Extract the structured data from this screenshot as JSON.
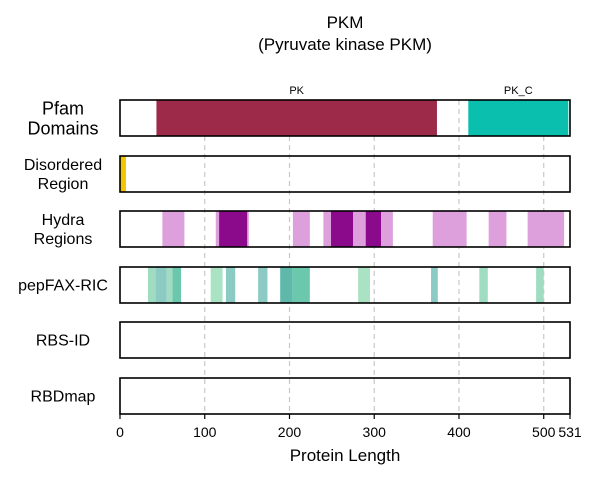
{
  "chart_data": {
    "type": "bar",
    "title": "PKM",
    "subtitle": "(Pyruvate kinase PKM)",
    "xlabel": "Protein Length",
    "xlim": [
      0,
      531
    ],
    "xticks": [
      0,
      100,
      200,
      300,
      400,
      500,
      531
    ],
    "grid": "vertical dashed at 100, 200, 300, 400, 500",
    "tracks": [
      {
        "label": "Pfam\nDomains",
        "features": [
          {
            "name": "PK",
            "start": 43,
            "end": 374,
            "color": "#9e2a4a"
          },
          {
            "name": "PK_C",
            "start": 411,
            "end": 529,
            "color": "#0bbfae"
          }
        ]
      },
      {
        "label": "Disordered\nRegion",
        "features": [
          {
            "start": 0,
            "end": 7,
            "color": "#f2c500"
          }
        ]
      },
      {
        "label": "Hydra\nRegions",
        "features": [
          {
            "start": 50,
            "end": 76,
            "color": "#dda0dd"
          },
          {
            "start": 113,
            "end": 152,
            "color": "#dda0dd"
          },
          {
            "start": 204,
            "end": 224,
            "color": "#dda0dd"
          },
          {
            "start": 240,
            "end": 258,
            "color": "#dda0dd"
          },
          {
            "start": 275,
            "end": 292,
            "color": "#dda0dd"
          },
          {
            "start": 305,
            "end": 322,
            "color": "#dda0dd"
          },
          {
            "start": 369,
            "end": 409,
            "color": "#dda0dd"
          },
          {
            "start": 435,
            "end": 456,
            "color": "#dda0dd"
          },
          {
            "start": 481,
            "end": 524,
            "color": "#dda0dd"
          },
          {
            "start": 117,
            "end": 150,
            "color": "#8b0a8b"
          },
          {
            "start": 249,
            "end": 275,
            "color": "#8b0a8b"
          },
          {
            "start": 290,
            "end": 308,
            "color": "#8b0a8b"
          }
        ]
      },
      {
        "label": "pepFAX-RIC",
        "features": [
          {
            "start": 33,
            "end": 42,
            "color": "#9fdcc2"
          },
          {
            "start": 42,
            "end": 55,
            "color": "#8ccbc4"
          },
          {
            "start": 55,
            "end": 62,
            "color": "#9fdcc2"
          },
          {
            "start": 62,
            "end": 72,
            "color": "#6bc8ad"
          },
          {
            "start": 107,
            "end": 121,
            "color": "#a9e3c4"
          },
          {
            "start": 125,
            "end": 136,
            "color": "#8ccbc4"
          },
          {
            "start": 163,
            "end": 174,
            "color": "#8ccbc4"
          },
          {
            "start": 189,
            "end": 203,
            "color": "#5fb8aa"
          },
          {
            "start": 203,
            "end": 224,
            "color": "#6bc8ad"
          },
          {
            "start": 281,
            "end": 295,
            "color": "#a9e3c4"
          },
          {
            "start": 367,
            "end": 375,
            "color": "#8ccbc4"
          },
          {
            "start": 424,
            "end": 434,
            "color": "#9fdcc2"
          },
          {
            "start": 491,
            "end": 500,
            "color": "#9fdcc2"
          }
        ]
      },
      {
        "label": "RBS-ID",
        "features": []
      },
      {
        "label": "RBDmap",
        "features": []
      }
    ]
  }
}
